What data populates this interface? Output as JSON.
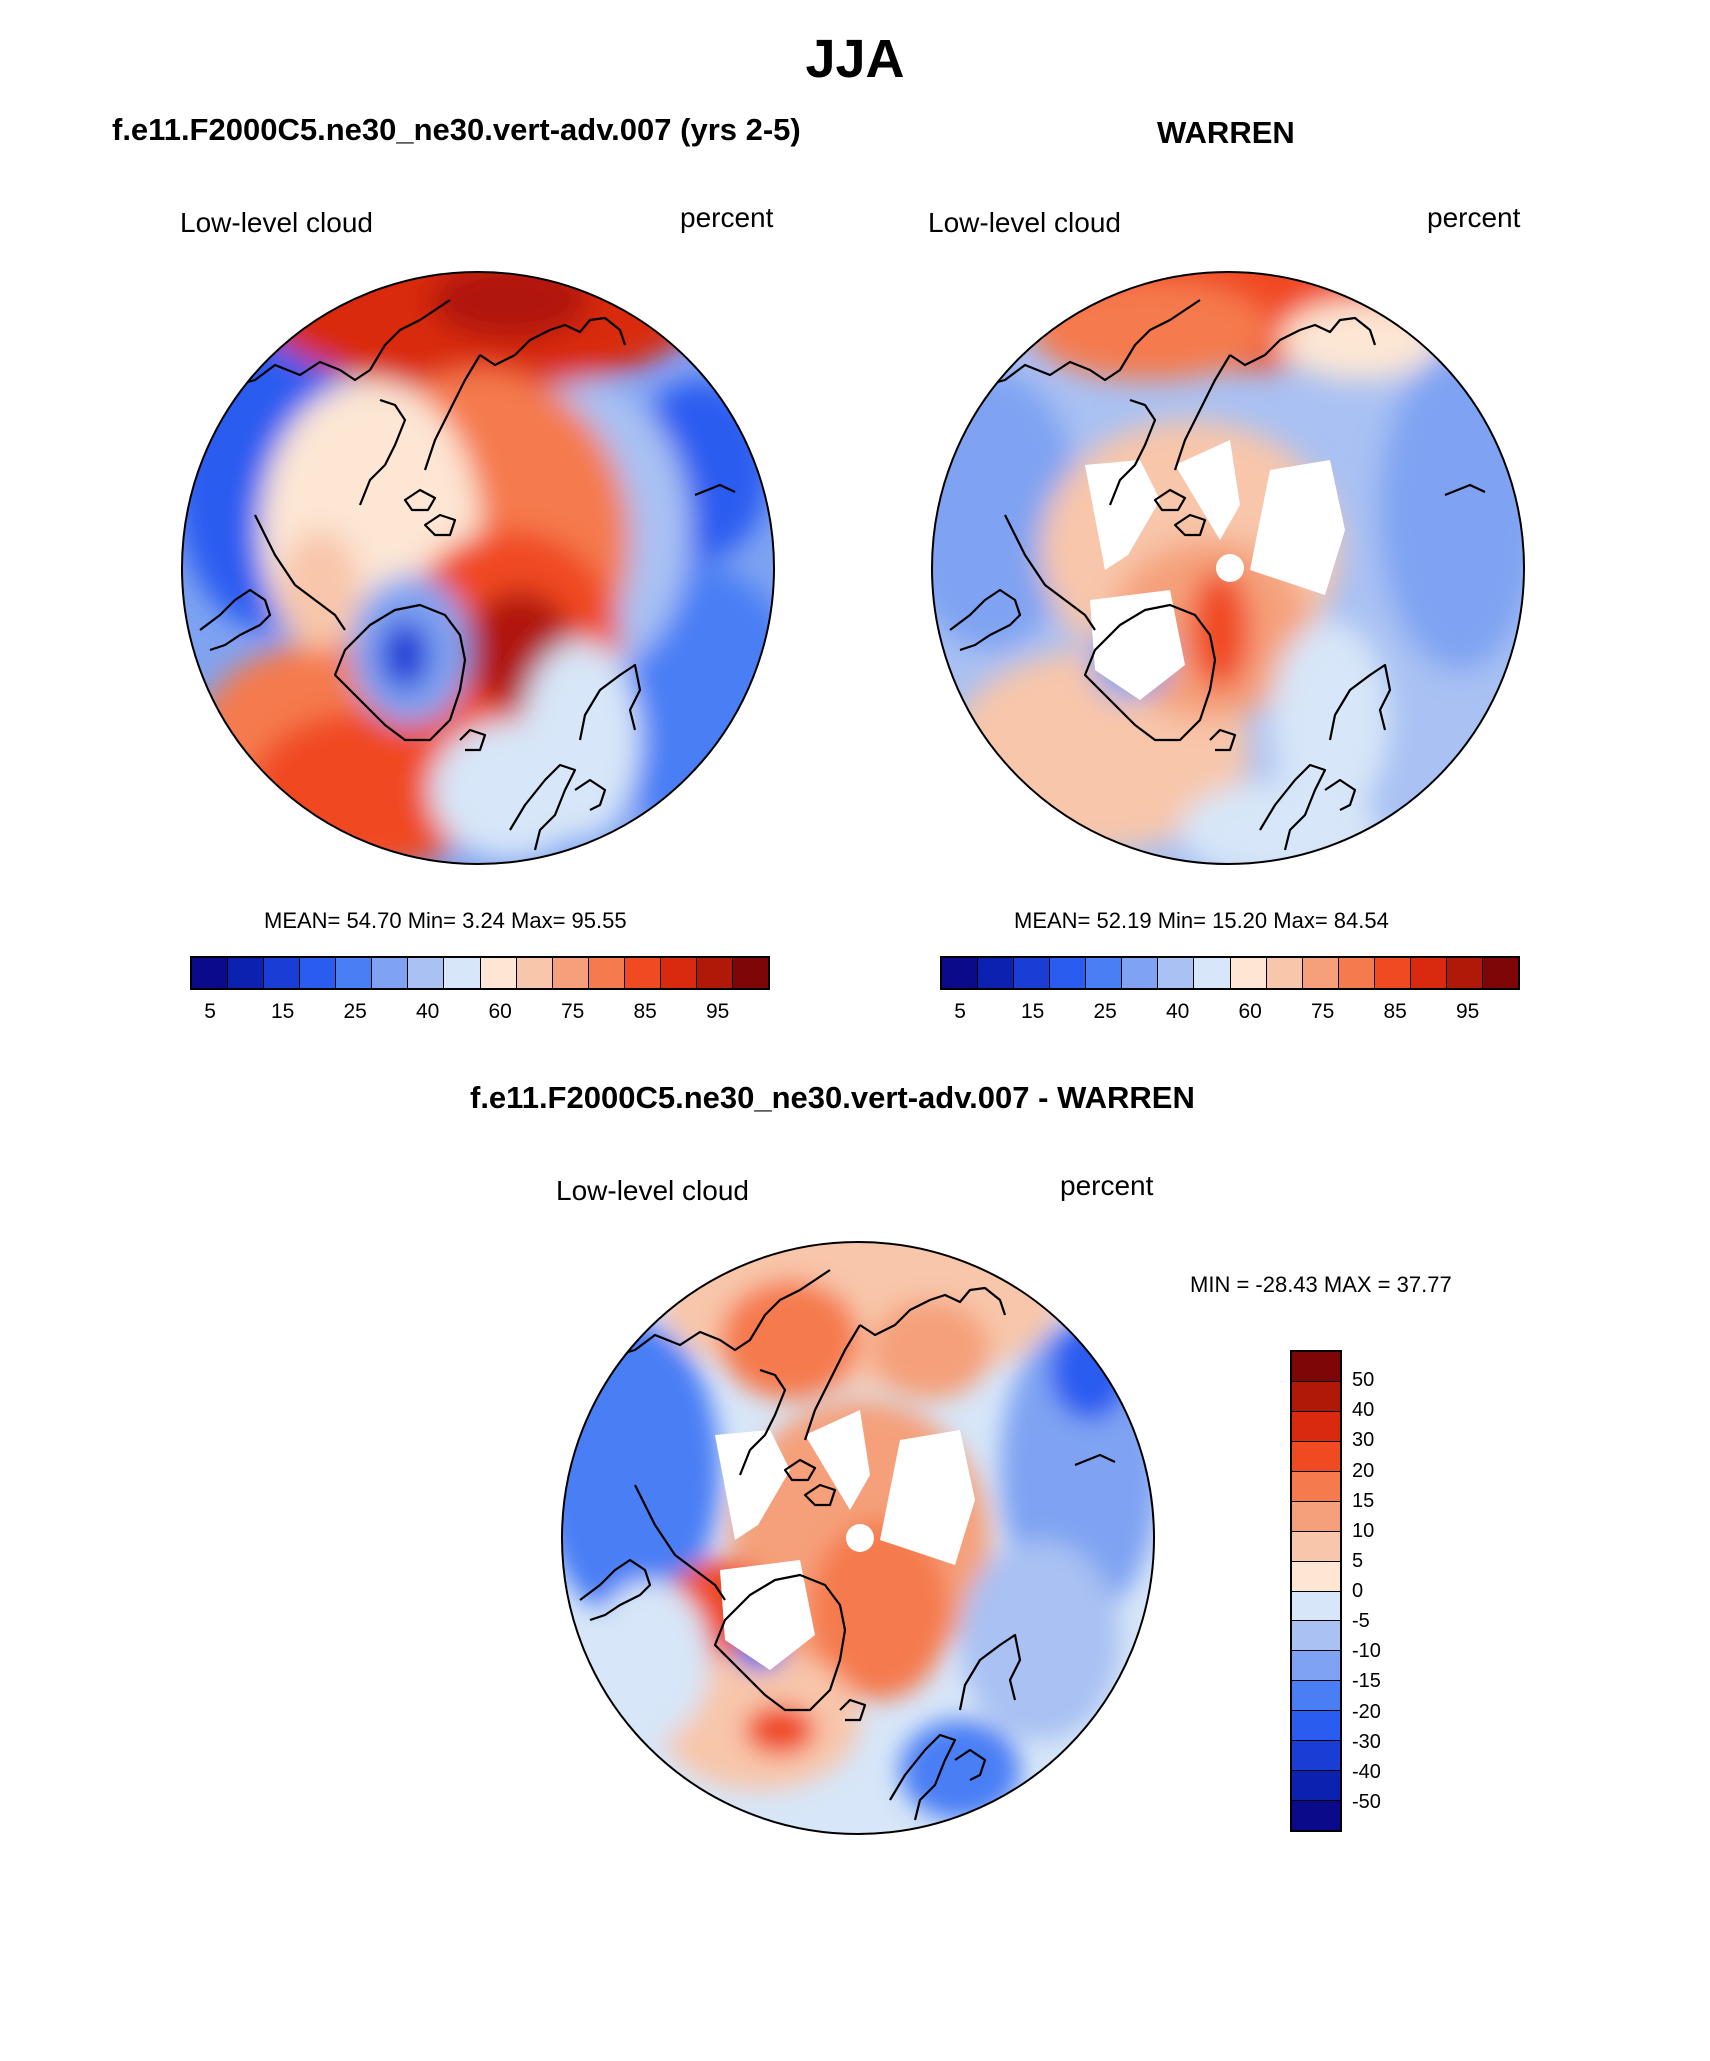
{
  "title": "JJA",
  "panels": {
    "model": {
      "title": "f.e11.F2000C5.ne30_ne30.vert-adv.007 (yrs 2-5)",
      "variable": "Low-level cloud",
      "units": "percent",
      "stats_text": "MEAN=  54.70  Min=   3.24  Max=  95.55"
    },
    "obs": {
      "title": "WARREN",
      "variable": "Low-level cloud",
      "units": "percent",
      "stats_text": "MEAN=  52.19  Min=  15.20  Max=  84.54"
    },
    "diff": {
      "title": "f.e11.F2000C5.ne30_ne30.vert-adv.007 - WARREN",
      "variable": "Low-level cloud",
      "units": "percent",
      "stats_text": "MIN = -28.43 MAX =  37.77"
    }
  },
  "colorbars": {
    "absolute": {
      "colors": [
        "#0a0a8a",
        "#0b22b0",
        "#1a3dd6",
        "#2a5cf0",
        "#4a7ef5",
        "#7fa3f2",
        "#a9c1f3",
        "#d7e6f8",
        "#fde6d4",
        "#f8c6aa",
        "#f5a07a",
        "#f57a4e",
        "#f04a22",
        "#d92a10",
        "#b01808",
        "#7e0606"
      ],
      "labels": [
        "5",
        "15",
        "25",
        "40",
        "60",
        "75",
        "85",
        "95"
      ]
    },
    "difference": {
      "colors": [
        "#7e0606",
        "#b01808",
        "#d92a10",
        "#f04a22",
        "#f57a4e",
        "#f5a07a",
        "#f8c6aa",
        "#fde6d4",
        "#d7e6f8",
        "#a9c1f3",
        "#7fa3f2",
        "#4a7ef5",
        "#2a5cf0",
        "#1a3dd6",
        "#0b22b0",
        "#0a0a8a"
      ],
      "labels": [
        "50",
        "40",
        "30",
        "20",
        "15",
        "10",
        "5",
        "0",
        "-5",
        "-10",
        "-15",
        "-20",
        "-30",
        "-40",
        "-50"
      ]
    }
  }
}
